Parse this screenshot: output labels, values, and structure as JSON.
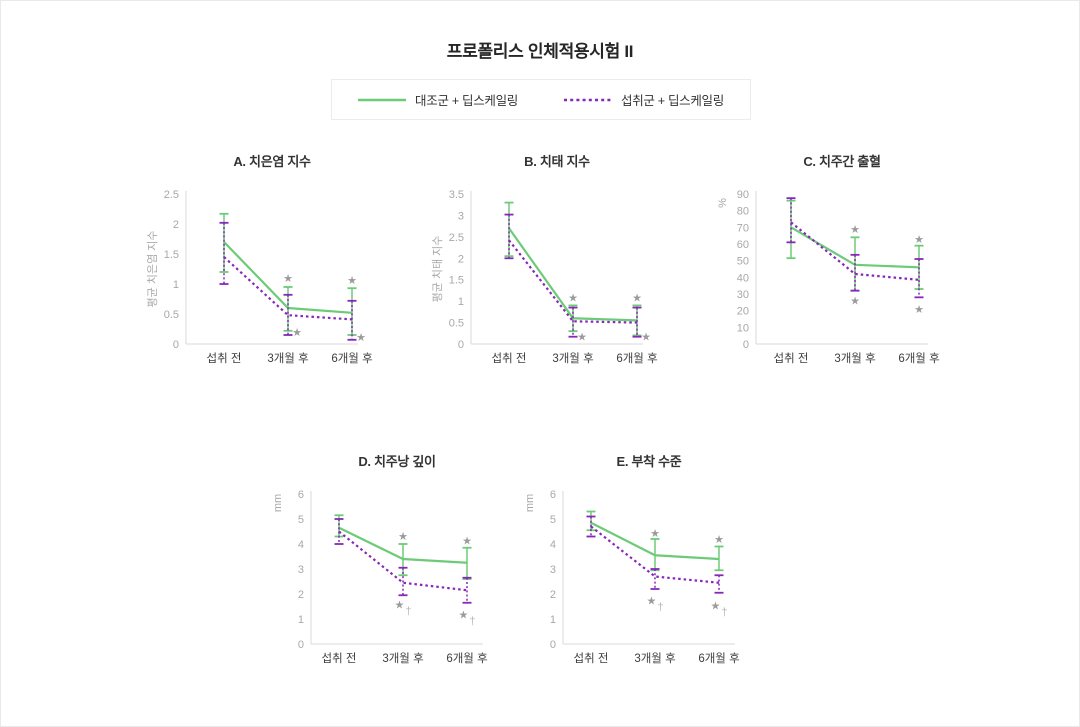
{
  "page": {
    "title": "프로폴리스 인체적용시험 II"
  },
  "legend": {
    "items": [
      {
        "label": "대조군 + 딥스케일링",
        "color": "#6dcb77",
        "style": "solid"
      },
      {
        "label": "섭취군 + 딥스케일링",
        "color": "#8727b8",
        "style": "dotted"
      }
    ]
  },
  "chart_data": [
    {
      "id": "A",
      "type": "line",
      "title": "A. 치은염 지수",
      "ylabel": "평균 치은염 지수",
      "ylabel_position": "middle",
      "ylim": [
        0,
        2.5
      ],
      "yticks": [
        "0",
        "0.5",
        "1",
        "1.5",
        "2",
        "2.5"
      ],
      "categories": [
        "섭취 전",
        "3개월 후",
        "6개월 후"
      ],
      "grid": false,
      "series": [
        {
          "name": "대조군 + 딥스케일링",
          "color": "#6dcb77",
          "dash": "solid",
          "values": [
            1.7,
            0.6,
            0.52
          ],
          "err_hi": [
            2.17,
            0.95,
            0.93
          ],
          "err_lo": [
            1.2,
            0.22,
            0.15
          ]
        },
        {
          "name": "섭취군 + 딥스케일링",
          "color": "#8727b8",
          "dash": "dotted",
          "values": [
            1.45,
            0.48,
            0.41
          ],
          "err_hi": [
            2.02,
            0.82,
            0.72
          ],
          "err_lo": [
            1.0,
            0.15,
            0.07
          ]
        }
      ],
      "annotations": [
        {
          "x": 1,
          "y": 1.1,
          "text": "★"
        },
        {
          "x": 1,
          "y": 0.2,
          "dx": 9,
          "text": "★"
        },
        {
          "x": 2,
          "y": 1.07,
          "text": "★"
        },
        {
          "x": 2,
          "y": 0.12,
          "dx": 9,
          "text": "★"
        }
      ]
    },
    {
      "id": "B",
      "type": "line",
      "title": "B. 치태 지수",
      "ylabel": "평균 치태 지수",
      "ylabel_position": "middle",
      "ylim": [
        0,
        3.5
      ],
      "yticks": [
        "0",
        "0.5",
        "1",
        "1.5",
        "2",
        "2.5",
        "3",
        "3.5"
      ],
      "categories": [
        "섭취 전",
        "3개월 후",
        "6개월 후"
      ],
      "grid": false,
      "series": [
        {
          "name": "대조군 + 딥스케일링",
          "color": "#6dcb77",
          "dash": "solid",
          "values": [
            2.7,
            0.6,
            0.55
          ],
          "err_hi": [
            3.3,
            0.9,
            0.9
          ],
          "err_lo": [
            2.05,
            0.3,
            0.2
          ]
        },
        {
          "name": "섭취군 + 딥스케일링",
          "color": "#8727b8",
          "dash": "dotted",
          "values": [
            2.42,
            0.53,
            0.5
          ],
          "err_hi": [
            3.02,
            0.85,
            0.85
          ],
          "err_lo": [
            2.0,
            0.17,
            0.17
          ]
        }
      ],
      "annotations": [
        {
          "x": 1,
          "y": 1.08,
          "text": "★"
        },
        {
          "x": 1,
          "y": 0.18,
          "dx": 9,
          "text": "★"
        },
        {
          "x": 2,
          "y": 1.08,
          "text": "★"
        },
        {
          "x": 2,
          "y": 0.18,
          "dx": 9,
          "text": "★"
        }
      ]
    },
    {
      "id": "C",
      "type": "line",
      "title": "C. 치주간 출혈",
      "ylabel": "%",
      "ylabel_position": "top",
      "ylim": [
        0,
        90
      ],
      "yticks": [
        "0",
        "10",
        "20",
        "30",
        "40",
        "50",
        "60",
        "70",
        "80",
        "90"
      ],
      "categories": [
        "섭취 전",
        "3개월 후",
        "6개월 후"
      ],
      "grid": false,
      "series": [
        {
          "name": "대조군 + 딥스케일링",
          "color": "#6dcb77",
          "dash": "solid",
          "values": [
            70,
            47.5,
            46
          ],
          "err_hi": [
            86,
            64,
            59
          ],
          "err_lo": [
            51.5,
            32,
            33
          ]
        },
        {
          "name": "섭취군 + 딥스케일링",
          "color": "#8727b8",
          "dash": "dotted",
          "values": [
            73,
            42,
            38.5
          ],
          "err_hi": [
            87.5,
            53.5,
            51
          ],
          "err_lo": [
            61,
            32,
            28
          ]
        }
      ],
      "annotations": [
        {
          "x": 1,
          "y": 69,
          "text": "★"
        },
        {
          "x": 1,
          "y": 26,
          "text": "★"
        },
        {
          "x": 2,
          "y": 63,
          "text": "★"
        },
        {
          "x": 2,
          "y": 21,
          "text": "★"
        }
      ]
    },
    {
      "id": "D",
      "type": "line",
      "title": "D. 치주낭 깊이",
      "ylabel": "mm",
      "ylabel_position": "top",
      "ylim": [
        0,
        6
      ],
      "yticks": [
        "0",
        "1",
        "2",
        "3",
        "4",
        "5",
        "6"
      ],
      "categories": [
        "섭취 전",
        "3개월 후",
        "6개월 후"
      ],
      "grid": false,
      "series": [
        {
          "name": "대조군 + 딥스케일링",
          "color": "#6dcb77",
          "dash": "solid",
          "values": [
            4.65,
            3.4,
            3.25
          ],
          "err_hi": [
            5.15,
            4.0,
            3.85
          ],
          "err_lo": [
            4.3,
            2.75,
            2.6
          ]
        },
        {
          "name": "섭취군 + 딥스케일링",
          "color": "#8727b8",
          "dash": "dotted",
          "values": [
            4.5,
            2.45,
            2.15
          ],
          "err_hi": [
            5.0,
            3.05,
            2.65
          ],
          "err_lo": [
            4.0,
            1.95,
            1.65
          ]
        }
      ],
      "annotations": [
        {
          "x": 1,
          "y": 4.32,
          "text": "★"
        },
        {
          "x": 1,
          "y": 1.58,
          "text": "★†"
        },
        {
          "x": 2,
          "y": 4.14,
          "text": "★"
        },
        {
          "x": 2,
          "y": 1.18,
          "text": "★†"
        }
      ]
    },
    {
      "id": "E",
      "type": "line",
      "title": "E. 부착 수준",
      "ylabel": "mm",
      "ylabel_position": "top",
      "ylim": [
        0,
        6
      ],
      "yticks": [
        "0",
        "1",
        "2",
        "3",
        "4",
        "5",
        "6"
      ],
      "categories": [
        "섭취 전",
        "3개월 후",
        "6개월 후"
      ],
      "grid": false,
      "series": [
        {
          "name": "대조군 + 딥스케일링",
          "color": "#6dcb77",
          "dash": "solid",
          "values": [
            4.85,
            3.55,
            3.4
          ],
          "err_hi": [
            5.3,
            4.2,
            3.9
          ],
          "err_lo": [
            4.55,
            2.95,
            2.95
          ]
        },
        {
          "name": "섭취군 + 딥스케일링",
          "color": "#8727b8",
          "dash": "dotted",
          "values": [
            4.7,
            2.7,
            2.45
          ],
          "err_hi": [
            5.1,
            3.0,
            2.75
          ],
          "err_lo": [
            4.3,
            2.2,
            2.05
          ]
        }
      ],
      "annotations": [
        {
          "x": 1,
          "y": 4.45,
          "text": "★"
        },
        {
          "x": 1,
          "y": 1.75,
          "text": "★†"
        },
        {
          "x": 2,
          "y": 4.2,
          "text": "★"
        },
        {
          "x": 2,
          "y": 1.55,
          "text": "★†"
        }
      ]
    }
  ]
}
